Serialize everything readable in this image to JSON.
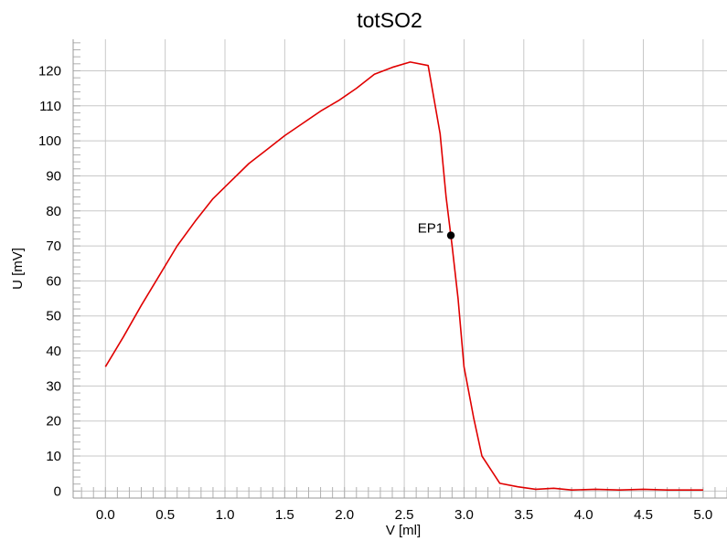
{
  "chart_data": {
    "type": "line",
    "title": "totSO2",
    "xlabel": "V [ml]",
    "ylabel": "U [mV]",
    "xlim": [
      -0.27,
      5.2
    ],
    "ylim": [
      -2,
      129
    ],
    "x_ticks": [
      0.0,
      0.5,
      1.0,
      1.5,
      2.0,
      2.5,
      3.0,
      3.5,
      4.0,
      4.5,
      5.0
    ],
    "x_tick_labels": [
      "0.0",
      "0.5",
      "1.0",
      "1.5",
      "2.0",
      "2.5",
      "3.0",
      "3.5",
      "4.0",
      "4.5",
      "5.0"
    ],
    "y_ticks": [
      0,
      10,
      20,
      30,
      40,
      50,
      60,
      70,
      80,
      90,
      100,
      110,
      120
    ],
    "y_tick_labels": [
      "0",
      "10",
      "20",
      "30",
      "40",
      "50",
      "60",
      "70",
      "80",
      "90",
      "100",
      "110",
      "120"
    ],
    "grid": true,
    "series": [
      {
        "color": "#e00000",
        "x": [
          0.0,
          0.15,
          0.3,
          0.45,
          0.6,
          0.75,
          0.9,
          1.05,
          1.2,
          1.35,
          1.5,
          1.65,
          1.8,
          1.95,
          2.1,
          2.25,
          2.4,
          2.55,
          2.7,
          2.8,
          2.85,
          2.9,
          2.95,
          3.0,
          3.08,
          3.15,
          3.3,
          3.45,
          3.6,
          3.75,
          3.9,
          4.1,
          4.3,
          4.5,
          4.7,
          5.0
        ],
        "y": [
          35.5,
          44,
          53,
          61.5,
          70,
          77,
          83.5,
          88.5,
          93.5,
          97.5,
          101.5,
          105,
          108.5,
          111.5,
          115,
          119,
          121,
          122.5,
          121.5,
          102,
          84,
          70,
          55,
          35.5,
          21,
          10,
          2.2,
          1.2,
          0.5,
          0.8,
          0.3,
          0.5,
          0.3,
          0.5,
          0.3,
          0.3
        ]
      }
    ],
    "annotations": [
      {
        "label": "EP1",
        "x": 2.89,
        "y": 73
      }
    ]
  },
  "colors": {
    "background": "#ffffff",
    "grid": "#c8c8c8",
    "axis": "#9a9a9a",
    "minor_tick": "#b0b0b0",
    "line": "#e00000",
    "marker": "#000000"
  }
}
